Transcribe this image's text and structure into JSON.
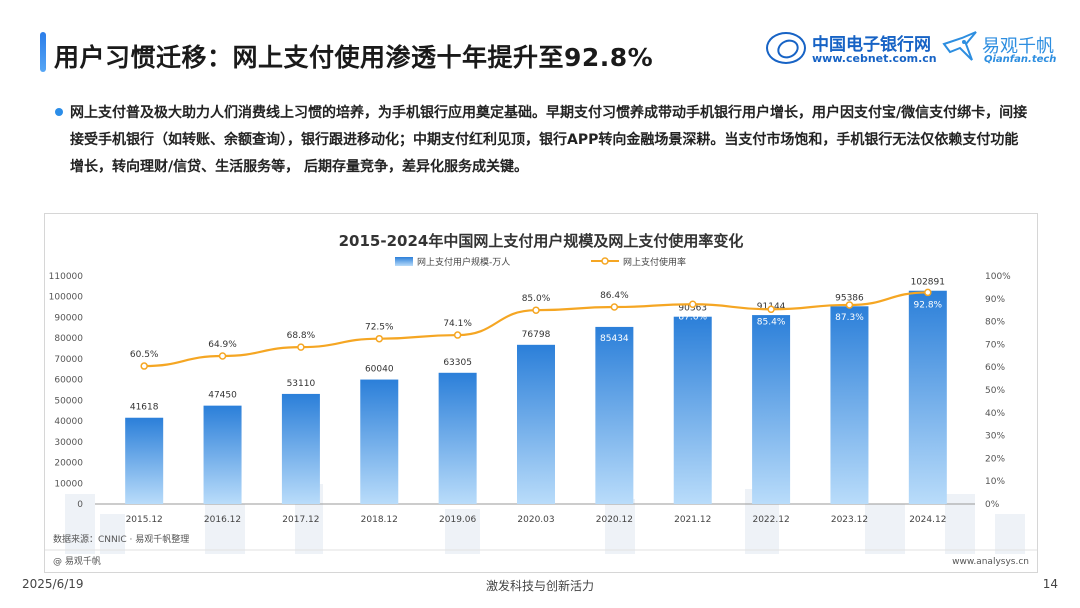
{
  "header": {
    "title": "用户习惯迁移：网上支付使用渗透十年提升至92.8%",
    "logo_cebnet_cn": "中国电子银行网",
    "logo_cebnet_url": "www.cebnet.com.cn",
    "logo_qianfan_cn": "易观千帆",
    "logo_qianfan_en": "Qianfan.tech"
  },
  "summary": "网上支付普及极大助力人们消费线上习惯的培养，为手机银行应用奠定基础。早期支付习惯养成带动手机银行用户增长，用户因支付宝/微信支付绑卡，间接接受手机银行（如转账、余额查询），银行跟进移动化；中期支付红利见顶，银行APP转向金融场景深耕。当支付市场饱和，手机银行无法仅依赖支付功能增长，转向理财/信贷、生活服务等， 后期存量竞争，差异化服务成关键。",
  "chart_data": {
    "type": "bar",
    "title": "2015-2024年中国网上支付用户规模及网上支付使用率变化",
    "categories": [
      "2015.12",
      "2016.12",
      "2017.12",
      "2018.12",
      "2019.06",
      "2020.03",
      "2020.12",
      "2021.12",
      "2022.12",
      "2023.12",
      "2024.12"
    ],
    "series": [
      {
        "name": "网上支付用户规模-万人",
        "type": "bar",
        "axis": "left",
        "values": [
          41618,
          47450,
          53110,
          60040,
          63305,
          76798,
          85434,
          90363,
          91144,
          95386,
          102891
        ],
        "labels": [
          "41618",
          "47450",
          "53110",
          "60040",
          "63305",
          "76798",
          "85434",
          "90363",
          "91144",
          "95386",
          "102891"
        ]
      },
      {
        "name": "网上支付使用率",
        "type": "line",
        "axis": "right",
        "values": [
          60.5,
          64.9,
          68.8,
          72.5,
          74.1,
          85.0,
          86.4,
          87.6,
          85.4,
          87.3,
          92.8
        ],
        "labels": [
          "60.5%",
          "64.9%",
          "68.8%",
          "72.5%",
          "74.1%",
          "85.0%",
          "86.4%",
          "87.6%",
          "85.4%",
          "87.3%",
          "92.8%"
        ]
      }
    ],
    "ylim_left": [
      0,
      110000
    ],
    "yticks_left": [
      "0",
      "10000",
      "20000",
      "30000",
      "40000",
      "50000",
      "60000",
      "70000",
      "80000",
      "90000",
      "100000",
      "110000"
    ],
    "ylim_right": [
      0,
      100
    ],
    "yticks_right": [
      "0%",
      "10%",
      "20%",
      "30%",
      "40%",
      "50%",
      "60%",
      "70%",
      "80%",
      "90%",
      "100%"
    ],
    "legend_position": "top-center",
    "grid": false,
    "colors": {
      "bar_top": "#2b7fd9",
      "bar_bottom": "#b9dcfa",
      "line": "#f5a623"
    },
    "source": "数据来源：CNNIC · 易观千帆整理",
    "watermark": "@ 易观千帆",
    "website": "www.analysys.cn"
  },
  "footer": {
    "date": "2025/6/19",
    "slogan": "激发科技与创新活力",
    "page": "14"
  }
}
